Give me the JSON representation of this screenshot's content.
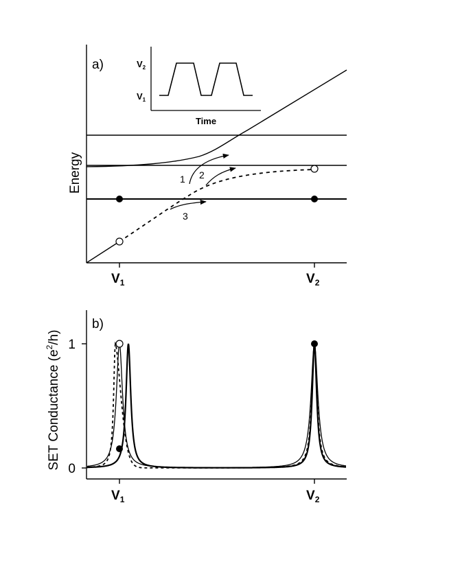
{
  "panel_a": {
    "label": "a)",
    "ylabel": "Energy",
    "x_ticks": [
      {
        "main": "V",
        "sub": "1"
      },
      {
        "main": "V",
        "sub": "2"
      }
    ],
    "arrow_labels": [
      "1",
      "2",
      "3"
    ],
    "inset": {
      "xlabel": "Time",
      "y_ticks": [
        {
          "main": "V",
          "sub": "2"
        },
        {
          "main": "V",
          "sub": "1"
        }
      ]
    }
  },
  "panel_b": {
    "label": "b)",
    "ylabel_main": "SET Conductance (e",
    "ylabel_sup": "2",
    "ylabel_end": "/h)",
    "y_ticks": [
      "1",
      "0"
    ],
    "x_ticks": [
      {
        "main": "V",
        "sub": "1"
      },
      {
        "main": "V",
        "sub": "2"
      }
    ]
  },
  "colors": {
    "ink": "#000000",
    "background": "#ffffff"
  }
}
